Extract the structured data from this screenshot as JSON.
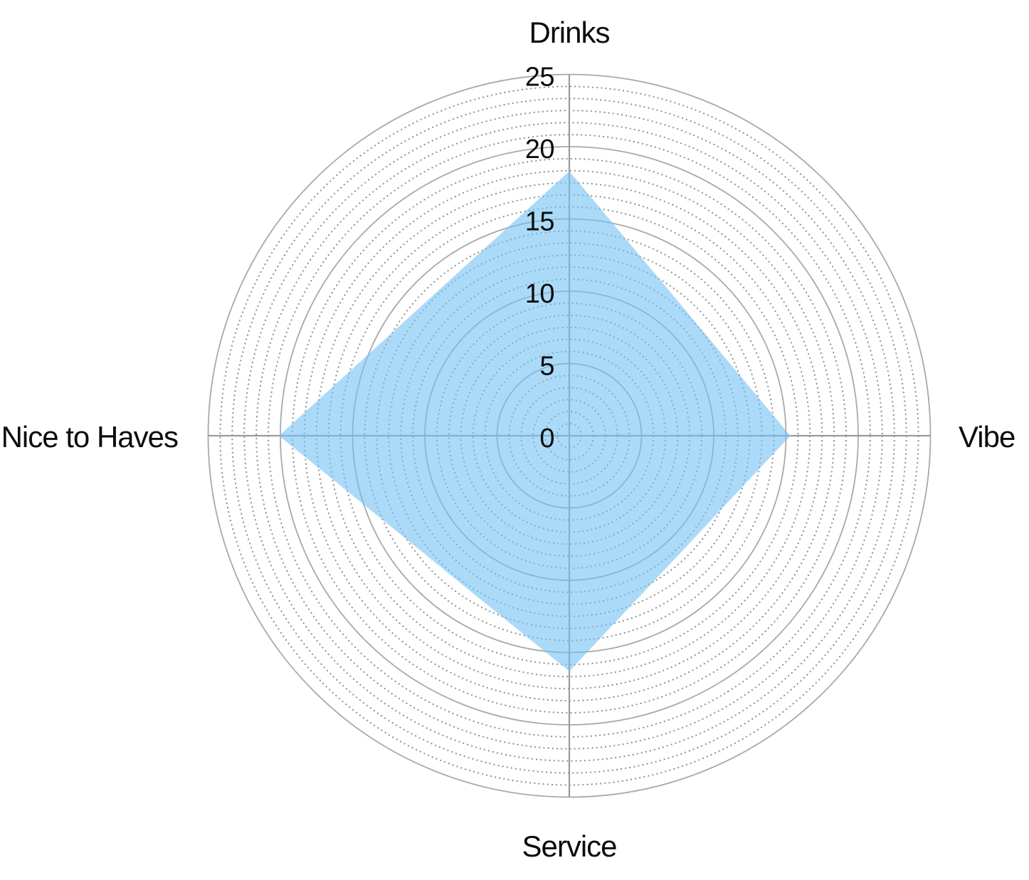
{
  "chart_data": {
    "type": "radar",
    "title": "",
    "categories": [
      "Drinks",
      "Vibe",
      "Service",
      "Nice to Haves"
    ],
    "angles_deg": [
      90,
      0,
      270,
      180
    ],
    "series": [
      {
        "values": [
          18.3,
          15.3,
          16.3,
          20.1
        ]
      }
    ],
    "rticks": [
      0,
      5,
      10,
      15,
      20,
      25
    ],
    "rmax": 25,
    "grid": {
      "grid_on": true,
      "major_step": 5,
      "minor_divisions_per_major": 6,
      "major_style": "solid",
      "minor_style": "dotted"
    },
    "legend": "none",
    "colors": {
      "fill": "#73C1F3",
      "fill_opacity": 0.6,
      "grid_major": "#A9A9A9",
      "grid_minor": "#8F8F8F",
      "axis_line": "#9B9B9B",
      "label_text": "#0C0C0C"
    }
  }
}
